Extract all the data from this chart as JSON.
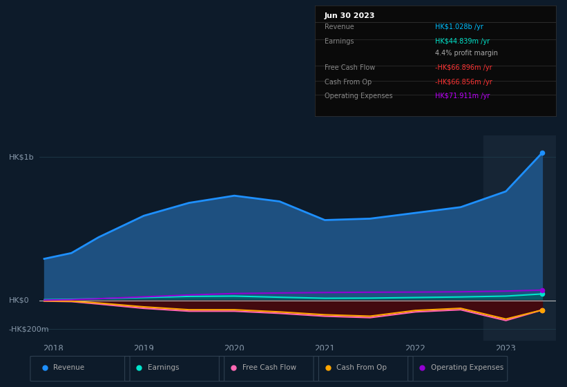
{
  "background_color": "#0d1b2a",
  "plot_bg_color": "#0d1b2a",
  "highlight_bg_color": "#162535",
  "ylabel_top": "HK$1b",
  "ylabel_zero": "HK$0",
  "ylabel_bottom": "-HK$200m",
  "years": [
    2017.9,
    2018.2,
    2018.5,
    2019.0,
    2019.5,
    2020.0,
    2020.5,
    2021.0,
    2021.5,
    2022.0,
    2022.5,
    2023.0,
    2023.4
  ],
  "revenue": [
    290,
    330,
    440,
    590,
    680,
    730,
    690,
    560,
    570,
    610,
    650,
    760,
    1028
  ],
  "earnings": [
    5,
    8,
    12,
    20,
    28,
    30,
    22,
    15,
    16,
    20,
    24,
    30,
    44.839
  ],
  "free_cash_flow": [
    -5,
    -8,
    -25,
    -55,
    -75,
    -75,
    -90,
    -110,
    -120,
    -80,
    -65,
    -140,
    -66.896
  ],
  "cash_from_op": [
    -3,
    -5,
    -18,
    -45,
    -65,
    -65,
    -80,
    -100,
    -110,
    -70,
    -55,
    -130,
    -66.856
  ],
  "operating_expenses": [
    2,
    5,
    12,
    25,
    38,
    48,
    52,
    55,
    57,
    58,
    60,
    65,
    71.911
  ],
  "series_colors": {
    "revenue": "#1e90ff",
    "earnings": "#00e5cc",
    "free_cash_flow": "#ff69b4",
    "cash_from_op": "#ffa500",
    "operating_expenses": "#9400d3"
  },
  "fill_colors": {
    "revenue_fill": "#1e5080",
    "earnings_fill": "#006060",
    "fcf_dark": "#5a1020",
    "cfop_dark": "#3a0808"
  },
  "highlight_x_start": 2022.75,
  "xticklabels": [
    "2018",
    "2019",
    "2020",
    "2021",
    "2022",
    "2023"
  ],
  "xtick_positions": [
    2018,
    2019,
    2020,
    2021,
    2022,
    2023
  ],
  "ylim": [
    -280,
    1150
  ],
  "xlim_left": 2017.85,
  "xlim_right": 2023.55,
  "grid_color": "#1e3a4a",
  "zero_line_color": "#cccccc",
  "legend_items": [
    {
      "label": "Revenue",
      "color": "#1e90ff"
    },
    {
      "label": "Earnings",
      "color": "#00e5cc"
    },
    {
      "label": "Free Cash Flow",
      "color": "#ff69b4"
    },
    {
      "label": "Cash From Op",
      "color": "#ffa500"
    },
    {
      "label": "Operating Expenses",
      "color": "#9400d3"
    }
  ],
  "infobox": {
    "title": "Jun 30 2023",
    "rows": [
      {
        "label": "Revenue",
        "value": "HK$1.028b /yr",
        "value_color": "#00bfff"
      },
      {
        "label": "Earnings",
        "value": "HK$44.839m /yr",
        "value_color": "#00e5cc"
      },
      {
        "label": "",
        "value": "4.4% profit margin",
        "value_color": "#aaaaaa"
      },
      {
        "label": "Free Cash Flow",
        "value": "-HK$66.896m /yr",
        "value_color": "#ff3333"
      },
      {
        "label": "Cash From Op",
        "value": "-HK$66.856m /yr",
        "value_color": "#ff3333"
      },
      {
        "label": "Operating Expenses",
        "value": "HK$71.911m /yr",
        "value_color": "#bf00ff"
      }
    ]
  }
}
